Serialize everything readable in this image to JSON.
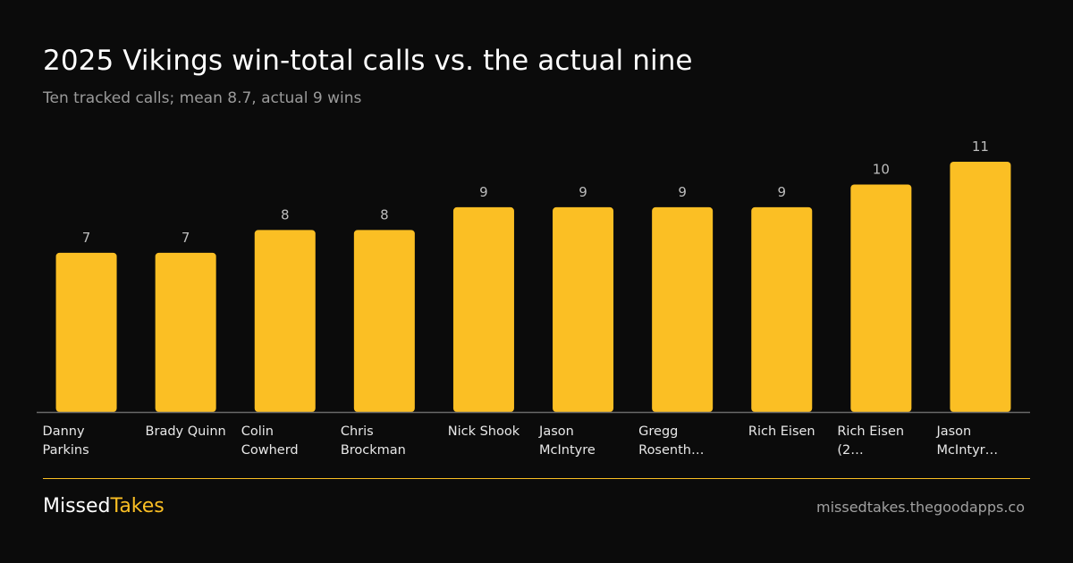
{
  "header": {
    "title": "2025 Vikings win-total calls vs. the actual nine",
    "subtitle": "Ten tracked calls; mean 8.7, actual 9 wins"
  },
  "chart_data": {
    "type": "bar",
    "categories": [
      [
        "Danny",
        "Parkins"
      ],
      [
        "Brady Quinn"
      ],
      [
        "Colin",
        "Cowherd"
      ],
      [
        "Chris",
        "Brockman"
      ],
      [
        "Nick Shook"
      ],
      [
        "Jason",
        "McIntyre"
      ],
      [
        "Gregg",
        "Rosenth…"
      ],
      [
        "Rich Eisen"
      ],
      [
        "Rich Eisen",
        "(2…"
      ],
      [
        "Jason",
        "McIntyr…"
      ]
    ],
    "values": [
      7,
      7,
      8,
      8,
      9,
      9,
      9,
      9,
      10,
      11
    ],
    "data_labels": [
      "7",
      "7",
      "8",
      "8",
      "9",
      "9",
      "9",
      "9",
      "10",
      "11"
    ],
    "ylim": [
      0,
      11
    ],
    "bar_color": "#fbbf24",
    "label_color": "#bdbdbd",
    "axis_color": "#6a6a6a",
    "grid": false,
    "legend": "none"
  },
  "footer": {
    "brand_part1": "Missed",
    "brand_part2": "Takes",
    "url": "missedtakes.thegoodapps.co",
    "accent_color": "#fbbf24"
  }
}
